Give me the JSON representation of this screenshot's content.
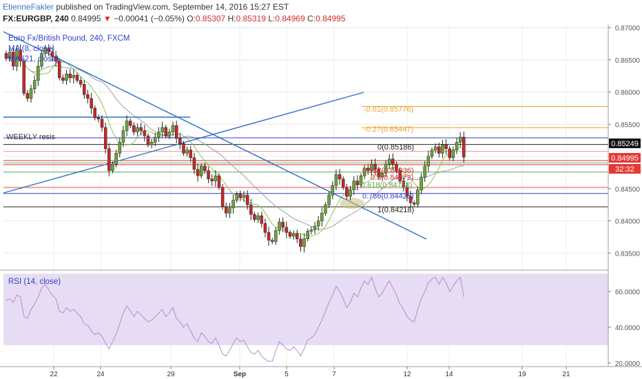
{
  "header": {
    "author": "EtienneFakler",
    "published_text": "published on TradingView.com, September 14, 2016 15:27 EST",
    "symbol": "FX:EURGBP, 240",
    "last": "0.84995",
    "change_arrow": "▼",
    "change": "−0.00041 (−0.05%)",
    "o_label": "O:",
    "o_value": "0.85307",
    "h_label": "H:",
    "h_value": "0.85319",
    "l_label": "L:",
    "l_value": "0.84969",
    "c_label": "C:",
    "c_value": "0.84995"
  },
  "legend": {
    "title": "Euro Fx/British Pound, 240, FXCM",
    "ma8": "MA (8, close)",
    "ma21": "MA (21, close)",
    "rsi": "RSI (14, close)"
  },
  "annotations": {
    "weekly": "WEEKLY resis",
    "fib_n061": "-0.61(0.85776)",
    "fib_n027": "-0.27(0.85447)",
    "fib_0": "0(0.85186)",
    "fib_0382": "0.382(0.84936)",
    "fib_05": "0.5(0.84872)",
    "fib_0618": "0.618(0.84758)",
    "fib_0786": "0.786(0.84425)",
    "fib_1": "1(0.84218)"
  },
  "price_tags": {
    "resis": "0.85249",
    "last": "0.84995",
    "timer": "32:32"
  },
  "colors": {
    "bull": "#6ba539",
    "bear": "#c62828",
    "trendline": "#2f6fc9",
    "fib_orange": "#f0a030",
    "fib_red": "#d32f2f",
    "fib_green": "#4caf50",
    "fib_blue": "#2f3fd0",
    "rsi_band": "#e6dcf3",
    "rsi_line": "#b88ad6"
  },
  "chart_data": {
    "type": "candlestick",
    "y_axis_ticks": [
      "0.87000",
      "0.86500",
      "0.86000",
      "0.85500",
      "0.85000",
      "0.84500",
      "0.84000",
      "0.83500"
    ],
    "ylim": [
      0.833,
      0.87
    ],
    "x_ticks": [
      "22",
      "24",
      "29",
      "Sep",
      "5",
      "7",
      "12",
      "14",
      "19",
      "21"
    ],
    "rsi_ticks": [
      "60.0000",
      "40.0000",
      "20.0000"
    ],
    "rsi_ylim": [
      18,
      72
    ],
    "rsi_band": [
      30,
      70
    ],
    "levels": [
      {
        "label": "WEEKLY resis",
        "price": 0.85249
      },
      {
        "label": "-0.61",
        "price": 0.85776
      },
      {
        "label": "-0.27",
        "price": 0.85447
      },
      {
        "label": "0",
        "price": 0.85186
      },
      {
        "label": "0.382",
        "price": 0.84936
      },
      {
        "label": "0.5",
        "price": 0.84872
      },
      {
        "label": "0.618",
        "price": 0.84758
      },
      {
        "label": "0.786",
        "price": 0.84425
      },
      {
        "label": "1",
        "price": 0.84218
      }
    ],
    "closes": [
      0.8652,
      0.8662,
      0.864,
      0.8665,
      0.8648,
      0.8598,
      0.859,
      0.8605,
      0.8618,
      0.864,
      0.866,
      0.8668,
      0.8662,
      0.8655,
      0.8648,
      0.8622,
      0.8618,
      0.8628,
      0.8622,
      0.8626,
      0.8618,
      0.8612,
      0.8596,
      0.859,
      0.8575,
      0.856,
      0.8558,
      0.8545,
      0.8512,
      0.8478,
      0.8488,
      0.8505,
      0.8522,
      0.854,
      0.8555,
      0.8548,
      0.8538,
      0.8545,
      0.854,
      0.8532,
      0.8518,
      0.8522,
      0.853,
      0.8538,
      0.8545,
      0.8532,
      0.8538,
      0.8548,
      0.8528,
      0.852,
      0.8505,
      0.851,
      0.8498,
      0.848,
      0.847,
      0.8485,
      0.8478,
      0.8465,
      0.8462,
      0.847,
      0.8452,
      0.8422,
      0.8412,
      0.842,
      0.8432,
      0.8442,
      0.8436,
      0.844,
      0.8425,
      0.841,
      0.8402,
      0.8408,
      0.8396,
      0.8382,
      0.837,
      0.8368,
      0.8385,
      0.8398,
      0.839,
      0.8382,
      0.8376,
      0.838,
      0.8372,
      0.836,
      0.8372,
      0.8384,
      0.8386,
      0.8392,
      0.84,
      0.8412,
      0.8425,
      0.844,
      0.8455,
      0.8472,
      0.8465,
      0.8452,
      0.8438,
      0.8448,
      0.8462,
      0.8456,
      0.847,
      0.8482,
      0.8478,
      0.8488,
      0.848,
      0.8468,
      0.8474,
      0.8488,
      0.8496,
      0.8488,
      0.8478,
      0.8462,
      0.8452,
      0.8438,
      0.8428,
      0.8426,
      0.8448,
      0.8468,
      0.8485,
      0.85,
      0.851,
      0.8515,
      0.8505,
      0.8518,
      0.8512,
      0.8498,
      0.851,
      0.8522,
      0.853,
      0.8499
    ],
    "rsi": [
      55,
      56,
      54,
      58,
      57,
      46,
      45,
      50,
      53,
      57,
      62,
      64,
      61,
      58,
      56,
      49,
      48,
      51,
      49,
      50,
      48,
      46,
      42,
      41,
      38,
      36,
      37,
      35,
      31,
      28,
      32,
      36,
      42,
      48,
      52,
      49,
      46,
      49,
      47,
      45,
      43,
      44,
      46,
      48,
      50,
      46,
      48,
      51,
      45,
      43,
      40,
      42,
      38,
      34,
      32,
      37,
      35,
      32,
      31,
      34,
      30,
      25,
      24,
      27,
      31,
      34,
      32,
      33,
      29,
      26,
      25,
      27,
      24,
      22,
      21,
      21,
      27,
      32,
      30,
      28,
      27,
      29,
      27,
      24,
      28,
      33,
      34,
      36,
      40,
      44,
      49,
      54,
      58,
      63,
      60,
      56,
      51,
      54,
      59,
      57,
      62,
      66,
      64,
      68,
      62,
      57,
      59,
      63,
      66,
      62,
      58,
      53,
      50,
      46,
      44,
      43,
      50,
      56,
      60,
      65,
      67,
      68,
      64,
      68,
      65,
      60,
      63,
      66,
      68,
      57
    ]
  }
}
